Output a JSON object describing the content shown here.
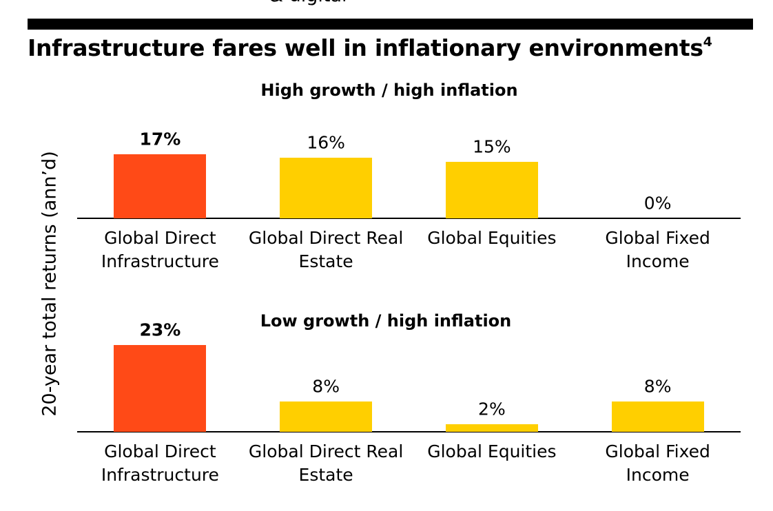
{
  "header_cut": "& digital",
  "title": "Infrastructure fares well in inflationary environments",
  "title_superscript": "4",
  "y_axis_label": "20-year total returns (ann’d)",
  "chart_data": [
    {
      "type": "bar",
      "subtitle": "High growth / high inflation",
      "categories": [
        "Global Direct Infrastructure",
        "Global Direct Real Estate",
        "Global Equities",
        "Global Fixed Income"
      ],
      "values": [
        17,
        16,
        15,
        0
      ],
      "value_labels": [
        "17%",
        "16%",
        "15%",
        "0%"
      ],
      "colors": [
        "#ff4a17",
        "#ffcf00",
        "#ffcf00",
        "#ffcf00"
      ]
    },
    {
      "type": "bar",
      "subtitle": "Low growth / high inflation",
      "categories": [
        "Global Direct Infrastructure",
        "Global Direct Real Estate",
        "Global Equities",
        "Global Fixed Income"
      ],
      "values": [
        23,
        8,
        2,
        8
      ],
      "value_labels": [
        "23%",
        "8%",
        "2%",
        "8%"
      ],
      "colors": [
        "#ff4a17",
        "#ffcf00",
        "#ffcf00",
        "#ffcf00"
      ]
    }
  ]
}
